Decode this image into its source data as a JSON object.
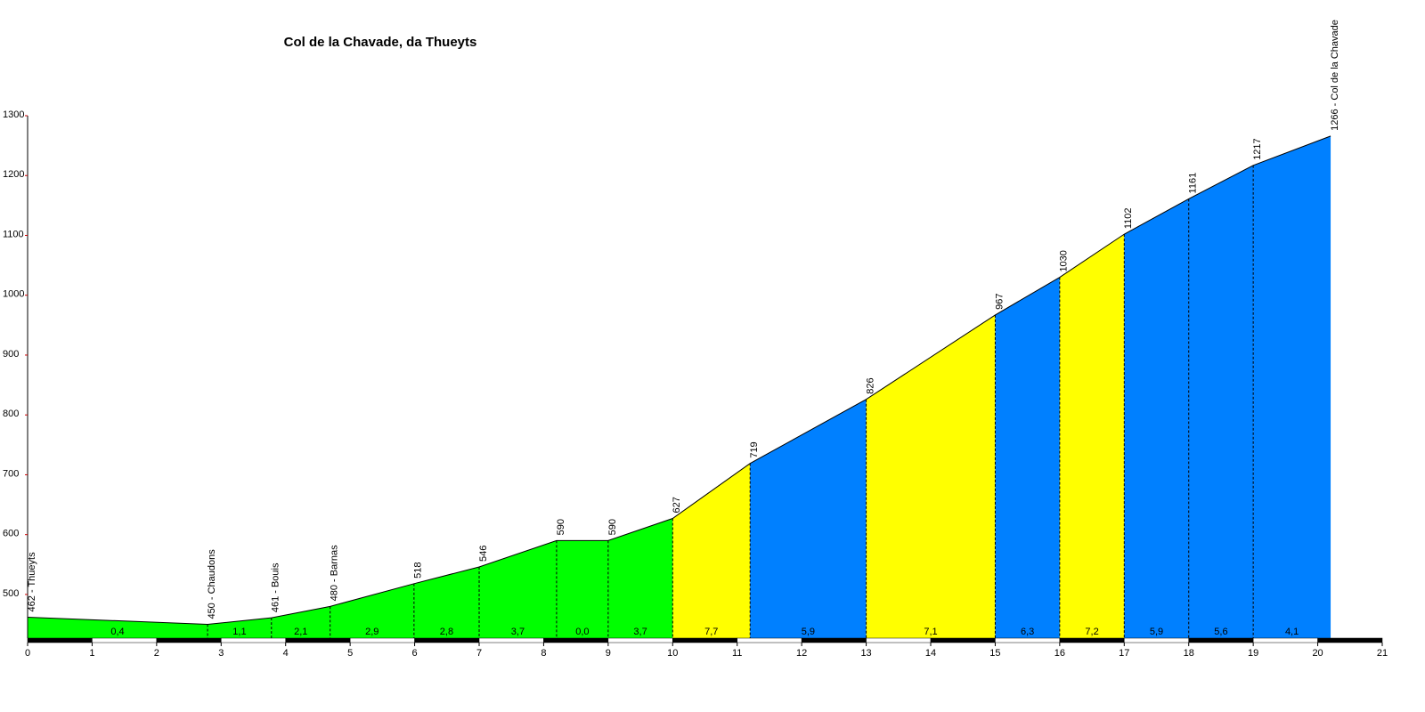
{
  "chart_data": {
    "type": "area",
    "title": "Col de la Chavade, da Thueyts",
    "x": [
      0,
      2.79,
      3.78,
      4.69,
      5.99,
      7.0,
      8.2,
      9.0,
      10.0,
      11.2,
      13.0,
      15.0,
      16.0,
      17.0,
      18.0,
      19.0,
      20.2
    ],
    "values": [
      462,
      450,
      461,
      480,
      518,
      546,
      590,
      590,
      627,
      719,
      826,
      967,
      1030,
      1102,
      1161,
      1217,
      1266
    ],
    "value_labels": [
      "462 - Thueyts",
      "450 - Chaudons",
      "461 - Bouis",
      "480 - Barnas",
      null,
      null,
      null,
      null,
      null,
      null,
      null,
      null,
      null,
      null,
      null,
      null,
      "1266 - Col de la Chavade"
    ],
    "gradients": [
      0.4,
      1.1,
      2.1,
      2.9,
      2.8,
      3.7,
      0.0,
      3.7,
      7.7,
      5.9,
      7.1,
      6.3,
      7.2,
      5.9,
      5.6,
      4.1
    ],
    "gradient_labels": [
      "0,4",
      "1,1",
      "2,1",
      "2,9",
      "2,8",
      "3,7",
      "0,0",
      "3,7",
      "7,7",
      "5,9",
      "7,1",
      "6,3",
      "7,2",
      "5,9",
      "5,6",
      "4,1"
    ],
    "segment_colors": [
      "#00ff00",
      "#00ff00",
      "#00ff00",
      "#00ff00",
      "#00ff00",
      "#00ff00",
      "#00ff00",
      "#00ff00",
      "#ffff00",
      "#0080ff",
      "#ffff00",
      "#0080ff",
      "#ffff00",
      "#0080ff",
      "#0080ff",
      "#0080ff"
    ],
    "xlim": [
      0,
      21
    ],
    "xticks": [
      0,
      1,
      2,
      3,
      4,
      5,
      6,
      7,
      8,
      9,
      10,
      11,
      12,
      13,
      14,
      15,
      16,
      17,
      18,
      19,
      20,
      21
    ],
    "ylim": [
      427,
      1300
    ],
    "yticks": [
      500,
      600,
      700,
      800,
      900,
      1000,
      1100,
      1200,
      1300
    ]
  }
}
